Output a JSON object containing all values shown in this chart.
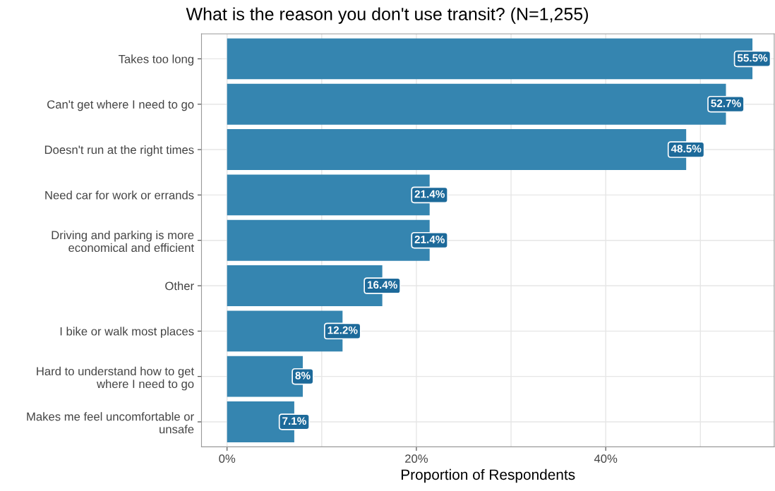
{
  "chart_data": {
    "type": "bar",
    "orientation": "horizontal",
    "title": "What is the reason you don't use transit? (N=1,255)",
    "xlabel": "Proportion of Respondents",
    "categories": [
      "Takes too long",
      "Can't get where I need to go",
      "Doesn't run at the right times",
      "Need car for work or errands",
      "Driving and parking is more\neconomical and efficient",
      "Other",
      "I bike or walk most places",
      "Hard to understand how to get\nwhere I need to go",
      "Makes me feel uncomfortable or\nunsafe"
    ],
    "values": [
      55.5,
      52.7,
      48.5,
      21.4,
      21.4,
      16.4,
      12.2,
      8,
      7.1
    ],
    "value_labels": [
      "55.5%",
      "52.7%",
      "48.5%",
      "21.4%",
      "21.4%",
      "16.4%",
      "12.2%",
      "8%",
      "7.1%"
    ],
    "color": "#3585b0",
    "xlim": [
      -2.7,
      57.8
    ],
    "xticks": [
      {
        "value": 0,
        "label": "0%"
      },
      {
        "value": 10,
        "label": null
      },
      {
        "value": 20,
        "label": "20%"
      },
      {
        "value": 30,
        "label": null
      },
      {
        "value": 40,
        "label": "40%"
      },
      {
        "value": 50,
        "label": null
      }
    ],
    "grid": true
  }
}
